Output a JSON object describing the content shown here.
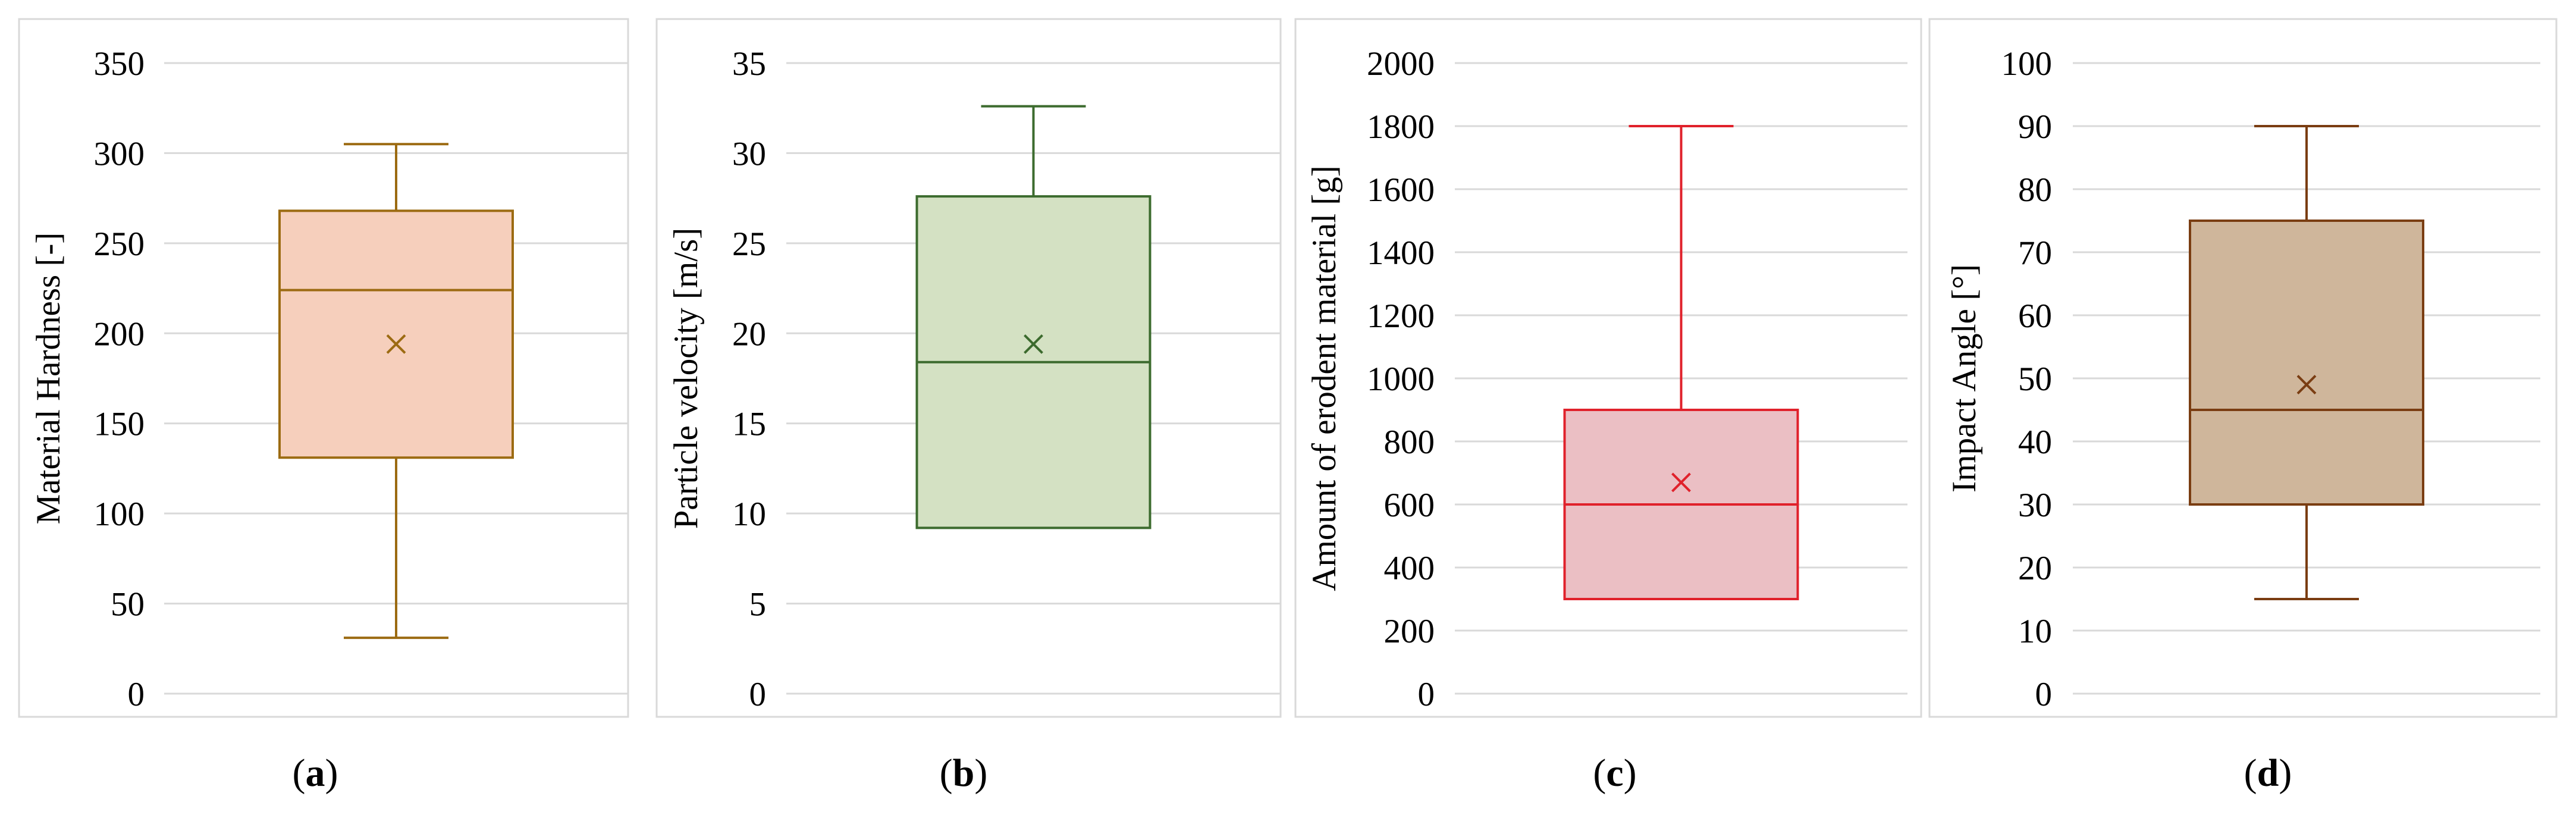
{
  "chart_data": [
    {
      "type": "box",
      "panel_label": "a",
      "ylabel": "Material Hardness [-]",
      "ylim": [
        0,
        350
      ],
      "yticks": [
        0,
        50,
        100,
        150,
        200,
        250,
        300,
        350
      ],
      "box": {
        "min": 31,
        "q1": 131,
        "median": 224,
        "q3": 268,
        "max": 305,
        "mean": 194
      },
      "stroke": "#9c6b12",
      "fill": "#f6cfbc"
    },
    {
      "type": "box",
      "panel_label": "b",
      "ylabel": "Particle velocity [m/s]",
      "ylim": [
        0,
        35
      ],
      "yticks": [
        0,
        5,
        10,
        15,
        20,
        25,
        30,
        35
      ],
      "box": {
        "min": 9.2,
        "q1": 9.2,
        "median": 18.4,
        "q3": 27.6,
        "max": 32.6,
        "mean": 19.4
      },
      "stroke": "#3c6b2e",
      "fill": "#d4e1c3"
    },
    {
      "type": "box",
      "panel_label": "c",
      "ylabel": "Amount of erodent material [g]",
      "ylim": [
        0,
        2000
      ],
      "yticks": [
        0,
        200,
        400,
        600,
        800,
        1000,
        1200,
        1400,
        1600,
        1800,
        2000
      ],
      "box": {
        "min": 300,
        "q1": 300,
        "median": 600,
        "q3": 900,
        "max": 1800,
        "mean": 670
      },
      "stroke": "#e0212b",
      "fill": "#ebbfc4"
    },
    {
      "type": "box",
      "panel_label": "d",
      "ylabel": "Impact Angle [°]",
      "ylim": [
        0,
        100
      ],
      "yticks": [
        0,
        10,
        20,
        30,
        40,
        50,
        60,
        70,
        80,
        90,
        100
      ],
      "box": {
        "min": 15,
        "q1": 30,
        "median": 45,
        "q3": 75,
        "max": 90,
        "mean": 49
      },
      "stroke": "#7a3d12",
      "fill": "#cfb69b"
    }
  ]
}
